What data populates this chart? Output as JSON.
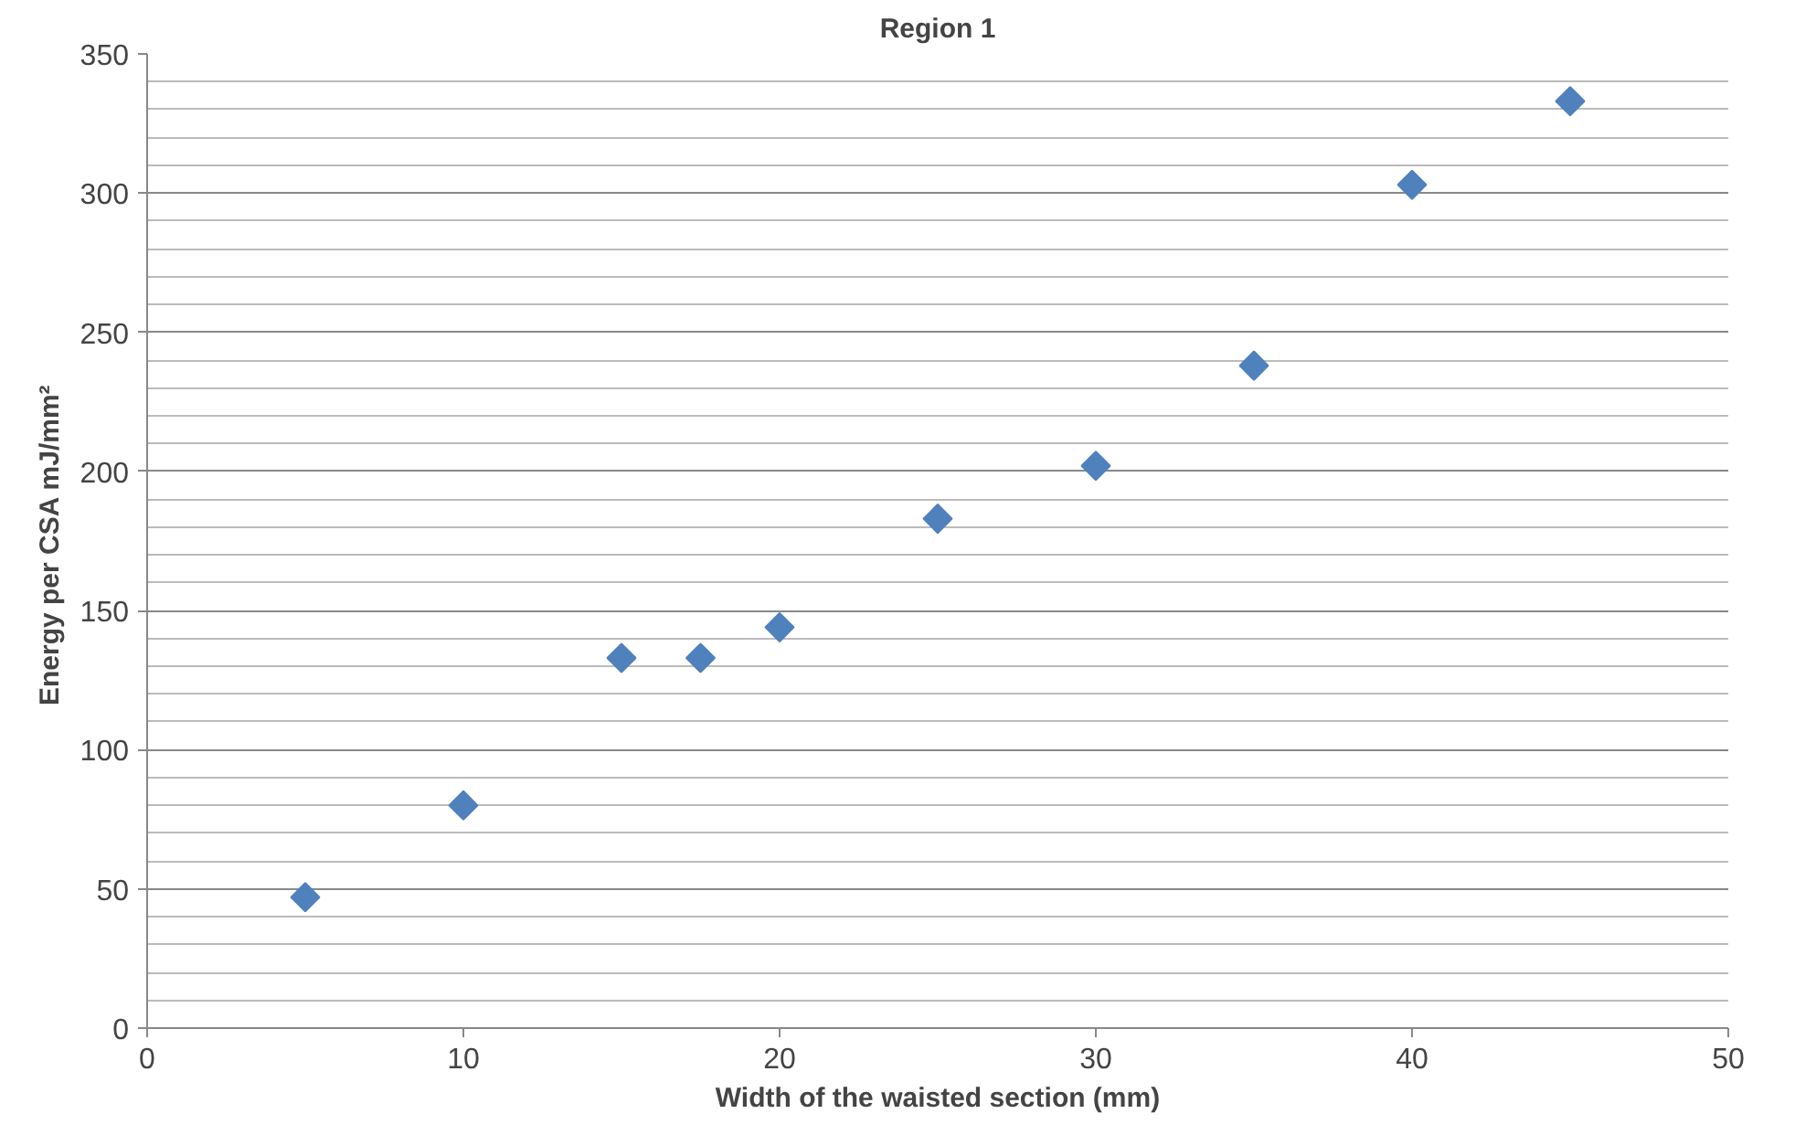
{
  "chart_data": {
    "type": "scatter",
    "title": "Region 1",
    "xlabel": "Width of the waisted section (mm)",
    "ylabel": "Energy  per CSA mJ/mm²",
    "x": [
      5,
      10,
      15,
      17.5,
      20,
      25,
      30,
      35,
      40,
      45
    ],
    "series": [
      {
        "color": "#4f81bd",
        "values": [
          47,
          80,
          133,
          133,
          144,
          183,
          202,
          238,
          303,
          333
        ]
      }
    ],
    "xlim": [
      0,
      50
    ],
    "xticks": [
      0,
      10,
      20,
      30,
      40,
      50
    ],
    "ylim": [
      0,
      350
    ],
    "yticks": [
      0,
      50,
      100,
      150,
      200,
      250,
      300,
      350
    ],
    "grid": "y",
    "marker": "diamond"
  }
}
